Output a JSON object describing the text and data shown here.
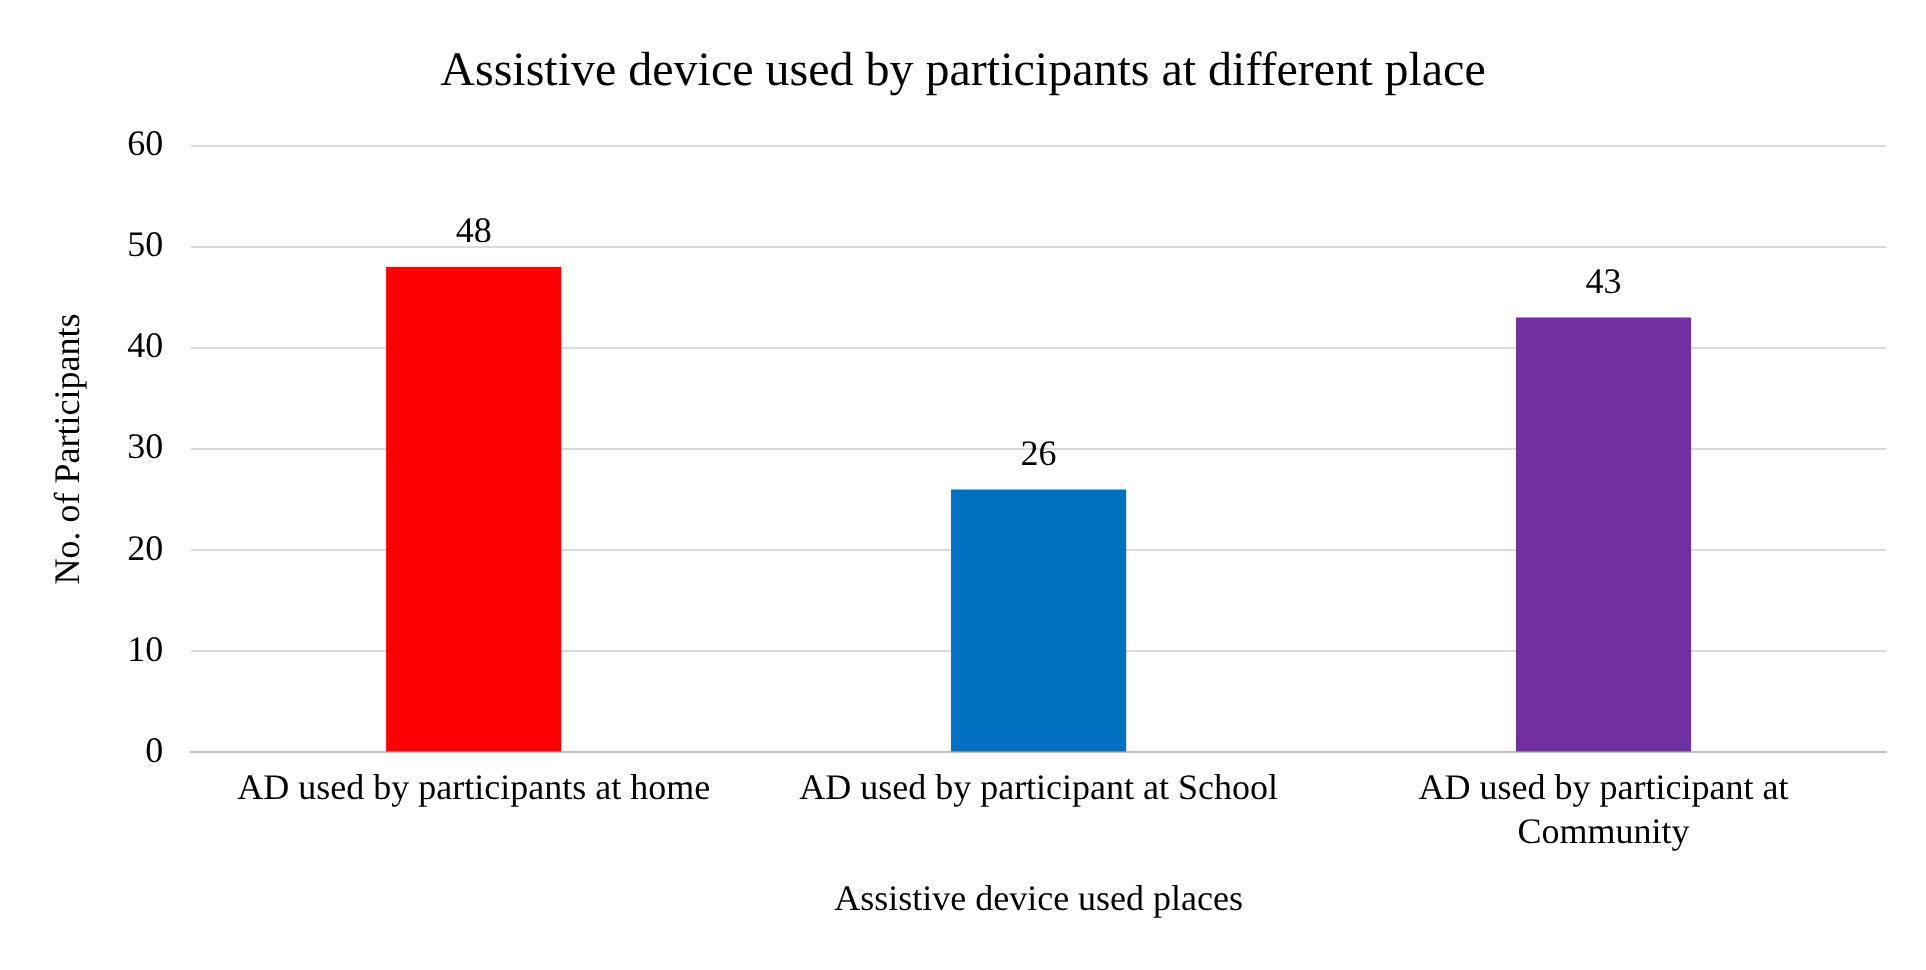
{
  "chart_data": {
    "type": "bar",
    "title": "Assistive device used by participants at different place",
    "xlabel": "Assistive device used places",
    "ylabel": "No. of Participants",
    "categories": [
      "AD used by participants at home",
      "AD used by participant at School",
      "AD used by participant at Community"
    ],
    "values": [
      48,
      26,
      43
    ],
    "colors": [
      "#ff0000",
      "#0070c0",
      "#7030a0"
    ],
    "ylim": [
      0,
      60
    ],
    "yticks": [
      0,
      10,
      20,
      30,
      40,
      50,
      60
    ],
    "grid": "y",
    "data_labels": true,
    "legend": false
  }
}
